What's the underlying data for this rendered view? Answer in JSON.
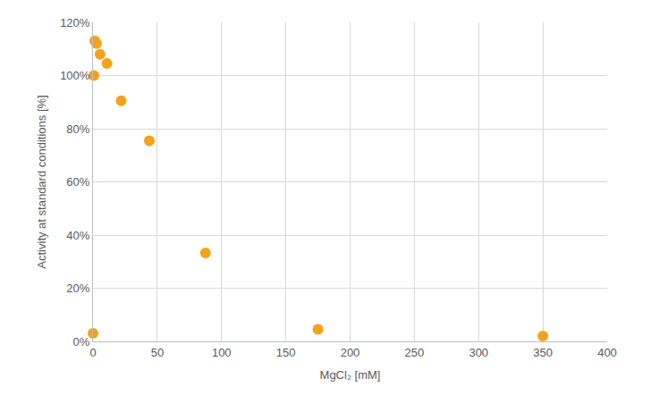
{
  "chart_data": {
    "type": "scatter",
    "x_label": "MgCl₂ [mM]",
    "y_label": "Activity at standard conditions [%]",
    "x": [
      0,
      0.68,
      1.37,
      2.73,
      5.47,
      10.9,
      21.9,
      43.8,
      87.5,
      175,
      350
    ],
    "values": [
      3,
      100,
      113,
      112,
      108,
      104.5,
      90.5,
      75.5,
      33.3,
      4.5,
      2
    ],
    "color": "#f4a21a",
    "marker": "circle",
    "xlim": [
      0,
      400
    ],
    "xticks": [
      0,
      50,
      100,
      150,
      200,
      250,
      300,
      350,
      400
    ],
    "ylim": [
      0,
      120
    ],
    "yticks": [
      {
        "value": 0,
        "label": "0%"
      },
      {
        "value": 20,
        "label": "20%"
      },
      {
        "value": 40,
        "label": "40%"
      },
      {
        "value": 60,
        "label": "60%"
      },
      {
        "value": 80,
        "label": "80%"
      },
      {
        "value": 100,
        "label": "100%"
      },
      {
        "value": 120,
        "label": "120%"
      }
    ],
    "grid": true
  }
}
